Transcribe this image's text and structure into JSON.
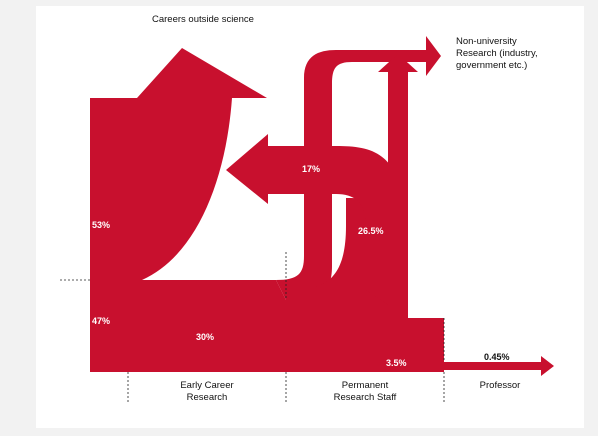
{
  "colors": {
    "flow": "#c8102e",
    "flow_dark": "#a30d26",
    "background": "#ffffff",
    "page": "#f2f2f2",
    "text": "#111111",
    "divider": "#222222"
  },
  "destinations": {
    "careers_outside_science": "Careers outside science",
    "non_university": [
      "Non-university",
      "Research (industry,",
      "government etc.)"
    ]
  },
  "flows": {
    "outside_science_pct": "53%",
    "stay_pct": "47%",
    "early_to_permanent_pct": "30%",
    "permanent_to_non_university_pct": "17%",
    "permanent_to_outside_pct": "26.5%",
    "permanent_to_professor_pct": "3.5%",
    "professor_pct": "0.45%"
  },
  "stages": {
    "early_career": [
      "Early Career",
      "Research"
    ],
    "permanent": [
      "Permanent",
      "Research Staff"
    ],
    "professor": "Professor"
  }
}
